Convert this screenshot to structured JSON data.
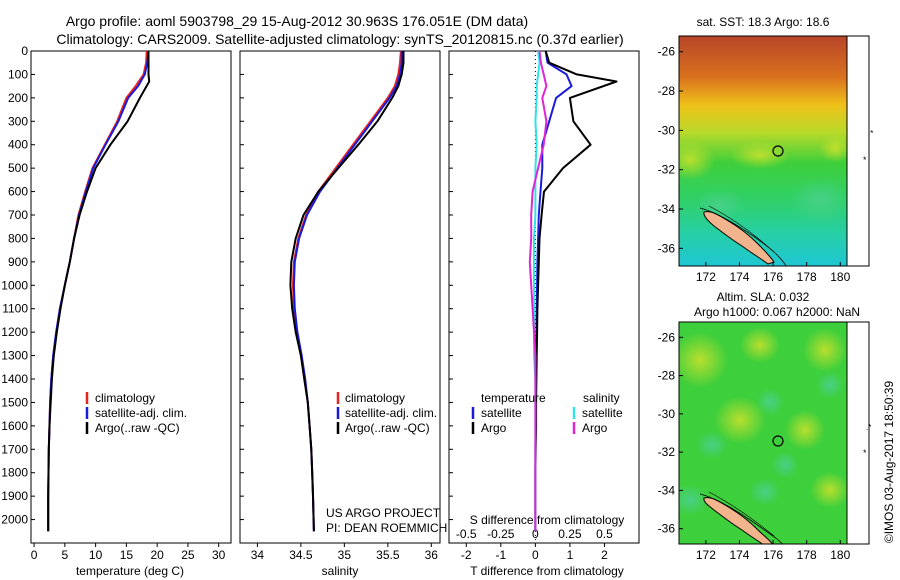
{
  "header": {
    "title_line1": "Argo profile: aoml 5903798_29 15-Aug-2012 30.963S 176.051E (DM data)",
    "title_line2": "Climatology: CARS2009. Satellite-adjusted climatology: synTS_20120815.nc (0.37d earlier)"
  },
  "colors": {
    "climatology": "#e8231d",
    "satellite": "#1a1adf",
    "argo": "#000000",
    "sal_satellite": "#31e2e6",
    "sal_argo": "#e025d6"
  },
  "chart_data": [
    {
      "type": "line",
      "id": "temperature",
      "xlabel": "temperature (deg C)",
      "ylabel": "",
      "xlim": [
        -0.5,
        32
      ],
      "ylim": [
        2100,
        0
      ],
      "xticks": [
        "0",
        "5",
        "10",
        "15",
        "20",
        "25",
        "30"
      ],
      "yticks": [
        "0",
        "100",
        "200",
        "300",
        "400",
        "500",
        "600",
        "700",
        "800",
        "900",
        "1000",
        "1100",
        "1200",
        "1300",
        "1400",
        "1500",
        "1600",
        "1700",
        "1800",
        "1900",
        "2000"
      ],
      "legend": [
        "climatology",
        "satellite-adj. clim.",
        "Argo(..raw -QC)"
      ],
      "legend_location": "lower-right",
      "series": [
        {
          "name": "climatology",
          "x": [
            18.3,
            18.2,
            17.8,
            16.5,
            15.0,
            13.5,
            11.5,
            9.5,
            8.3,
            7.2,
            6.5,
            5.8,
            5.0,
            4.2,
            3.6,
            3.1,
            2.8,
            2.6,
            2.5,
            2.4,
            2.35,
            2.3,
            2.3
          ],
          "y": [
            0,
            50,
            100,
            150,
            200,
            300,
            400,
            500,
            600,
            700,
            800,
            900,
            1000,
            1100,
            1200,
            1300,
            1400,
            1500,
            1600,
            1700,
            1800,
            1900,
            2050
          ]
        },
        {
          "name": "satellite-adj. clim.",
          "x": [
            18.6,
            18.4,
            18.0,
            16.9,
            15.3,
            13.7,
            11.6,
            9.6,
            8.4,
            7.3,
            6.5,
            5.8,
            5.0,
            4.2,
            3.6,
            3.1,
            2.8,
            2.6,
            2.5,
            2.4,
            2.35,
            2.3,
            2.3
          ],
          "y": [
            0,
            50,
            100,
            150,
            200,
            300,
            400,
            500,
            600,
            700,
            800,
            900,
            1000,
            1100,
            1200,
            1300,
            1400,
            1500,
            1600,
            1700,
            1800,
            1900,
            2050
          ]
        },
        {
          "name": "Argo(..raw -QC)",
          "x": [
            18.6,
            18.6,
            18.6,
            18.7,
            17.2,
            15.2,
            12.4,
            10.0,
            8.6,
            7.4,
            6.5,
            5.8,
            5.0,
            4.3,
            3.7,
            3.2,
            2.9,
            2.7,
            2.5,
            2.4,
            2.35,
            2.3,
            2.3
          ],
          "y": [
            0,
            50,
            100,
            130,
            200,
            300,
            400,
            500,
            600,
            700,
            800,
            900,
            1000,
            1100,
            1200,
            1300,
            1400,
            1500,
            1600,
            1700,
            1800,
            1900,
            2050
          ]
        }
      ]
    },
    {
      "type": "line",
      "id": "salinity",
      "xlabel": "salinity",
      "ylabel": "",
      "xlim": [
        33.8,
        36.1
      ],
      "ylim": [
        2100,
        0
      ],
      "xticks": [
        "34",
        "34.5",
        "35",
        "35.5",
        "36"
      ],
      "legend": [
        "climatology",
        "satellite-adj. clim.",
        "Argo(..raw -QC)"
      ],
      "legend_location": "lower-right",
      "series": [
        {
          "name": "climatology",
          "x": [
            35.65,
            35.64,
            35.62,
            35.58,
            35.5,
            35.3,
            35.1,
            34.9,
            34.7,
            34.56,
            34.47,
            34.42,
            34.41,
            34.42,
            34.45,
            34.5,
            34.54,
            34.58,
            34.6,
            34.62,
            34.63,
            34.64,
            34.65
          ],
          "y": [
            0,
            50,
            100,
            150,
            200,
            300,
            400,
            500,
            600,
            700,
            800,
            900,
            1000,
            1100,
            1200,
            1300,
            1400,
            1500,
            1600,
            1700,
            1800,
            1900,
            2050
          ]
        },
        {
          "name": "satellite-adj. clim.",
          "x": [
            35.66,
            35.66,
            35.64,
            35.6,
            35.52,
            35.32,
            35.12,
            34.92,
            34.72,
            34.57,
            34.48,
            34.43,
            34.42,
            34.43,
            34.46,
            34.51,
            34.55,
            34.58,
            34.6,
            34.62,
            34.63,
            34.64,
            34.65
          ],
          "y": [
            0,
            50,
            100,
            150,
            200,
            300,
            400,
            500,
            600,
            700,
            800,
            900,
            1000,
            1100,
            1200,
            1300,
            1400,
            1500,
            1600,
            1700,
            1800,
            1900,
            2050
          ]
        },
        {
          "name": "Argo(..raw -QC)",
          "x": [
            35.68,
            35.68,
            35.66,
            35.62,
            35.55,
            35.38,
            35.16,
            34.93,
            34.7,
            34.53,
            34.44,
            34.39,
            34.38,
            34.4,
            34.44,
            34.5,
            34.54,
            34.58,
            34.6,
            34.62,
            34.63,
            34.64,
            34.65
          ],
          "y": [
            0,
            50,
            100,
            150,
            200,
            300,
            400,
            500,
            600,
            700,
            800,
            900,
            1000,
            1100,
            1200,
            1300,
            1400,
            1500,
            1600,
            1700,
            1800,
            1900,
            2050
          ]
        }
      ]
    },
    {
      "type": "line",
      "id": "difference",
      "xlabel": "T difference from climatology",
      "xlabel_top": "S difference from climatology",
      "xlim": [
        -2.5,
        3.0
      ],
      "ylim": [
        2100,
        0
      ],
      "xticks_bottom": [
        "-2",
        "-1",
        "0",
        "1",
        "2"
      ],
      "xticks_top": [
        "-0.5",
        "-0.25",
        "0",
        "0.25",
        "0.5"
      ],
      "legend_temperature": {
        "title": "temperature",
        "items": [
          "satellite",
          "Argo"
        ]
      },
      "legend_salinity": {
        "title": "salinity",
        "items": [
          "satellite",
          "Argo"
        ]
      },
      "series": [
        {
          "name": "temperature satellite",
          "x": [
            0.3,
            0.35,
            0.9,
            1.05,
            0.6,
            0.4,
            0.2,
            0.2,
            0.15,
            0.1,
            0.08,
            0.06,
            0.05,
            0.04,
            0.03,
            0.02,
            0.02,
            0.01,
            0.01,
            0.0,
            0.0,
            0.0
          ],
          "y": [
            0,
            50,
            100,
            150,
            200,
            300,
            400,
            500,
            600,
            700,
            800,
            900,
            1000,
            1100,
            1200,
            1300,
            1400,
            1500,
            1600,
            1700,
            1800,
            2050
          ]
        },
        {
          "name": "temperature Argo",
          "x": [
            0.3,
            0.4,
            1.2,
            2.35,
            1.0,
            1.1,
            1.6,
            0.8,
            0.25,
            0.18,
            0.12,
            0.1,
            0.08,
            0.06,
            0.05,
            0.04,
            0.03,
            0.02,
            0.02,
            0.01,
            0.0,
            0.0
          ],
          "y": [
            0,
            50,
            100,
            130,
            200,
            300,
            400,
            500,
            600,
            700,
            800,
            900,
            1000,
            1100,
            1200,
            1300,
            1400,
            1500,
            1600,
            1700,
            1800,
            2050
          ]
        },
        {
          "name": "salinity satellite",
          "x": [
            0.02,
            0.03,
            0.02,
            0.01,
            0.01,
            0.0,
            0.01,
            0.0,
            0.0,
            0.0,
            -0.01,
            -0.01,
            -0.01,
            -0.01,
            -0.01,
            -0.01,
            0.0,
            0.0,
            0.0,
            0.0,
            0.0,
            0.0
          ],
          "y": [
            0,
            50,
            100,
            150,
            200,
            300,
            400,
            500,
            600,
            700,
            800,
            900,
            1000,
            1100,
            1200,
            1300,
            1400,
            1500,
            1600,
            1700,
            1800,
            2050
          ]
        },
        {
          "name": "salinity Argo",
          "x": [
            0.03,
            0.04,
            0.06,
            0.08,
            0.05,
            0.08,
            0.06,
            0.02,
            -0.02,
            -0.03,
            -0.03,
            -0.04,
            -0.03,
            -0.02,
            -0.01,
            0.0,
            0.0,
            0.0,
            0.0,
            0.0,
            0.0,
            0.0
          ],
          "y": [
            0,
            50,
            100,
            150,
            200,
            300,
            400,
            500,
            600,
            700,
            800,
            900,
            1000,
            1100,
            1200,
            1300,
            1400,
            1500,
            1600,
            1700,
            1800,
            2050
          ]
        }
      ]
    },
    {
      "type": "heatmap",
      "id": "sst_map",
      "title": "sat. SST: 18.3 Argo: 18.6",
      "xticks": [
        "172",
        "174",
        "176",
        "178",
        "180"
      ],
      "yticks": [
        "-26",
        "-28",
        "-30",
        "-32",
        "-34",
        "-36"
      ],
      "marker": {
        "lon": 176.051,
        "lat": -30.963
      }
    },
    {
      "type": "heatmap",
      "id": "sla_map",
      "title_line1": "Altim. SLA: 0.032",
      "title_line2": "Argo h1000: 0.067 h2000: NaN",
      "xticks": [
        "172",
        "174",
        "176",
        "178",
        "180"
      ],
      "yticks": [
        "-26",
        "-28",
        "-30",
        "-32",
        "-34",
        "-36"
      ],
      "marker": {
        "lon": 176.051,
        "lat": -30.963
      }
    }
  ],
  "credit": {
    "line1": "US ARGO PROJECT",
    "line2": "PI: DEAN ROEMMICH"
  },
  "stamp": "©IMOS 03-Aug-2017 18:50:39"
}
